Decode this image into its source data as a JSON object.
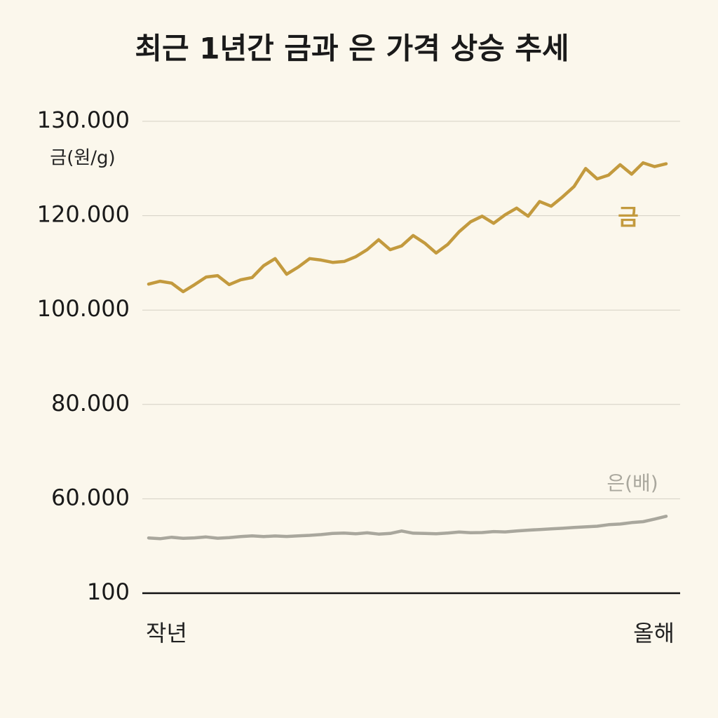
{
  "chart_data": {
    "type": "line",
    "title": "최근 1년간 금과 은 가격 상승 추세",
    "y_axis_label": "금(원/g)",
    "x_labels": [
      "작년",
      "올해"
    ],
    "ylim": [
      100,
      130000
    ],
    "yticks": [
      {
        "value": 130000,
        "label": "130.000"
      },
      {
        "value": 120000,
        "label": "120.000"
      },
      {
        "value": 100000,
        "label": "100.000"
      },
      {
        "value": 80000,
        "label": "80.000"
      },
      {
        "value": 60000,
        "label": "60.000"
      },
      100
    ],
    "grid": true,
    "series": [
      {
        "name": "금",
        "color": "#c39a3e",
        "values": [
          105500,
          106100,
          105700,
          103900,
          105400,
          107000,
          107300,
          105400,
          106400,
          106900,
          109400,
          110900,
          107600,
          109100,
          110900,
          110600,
          110100,
          110300,
          111300,
          112800,
          114900,
          112800,
          113600,
          115800,
          114200,
          112100,
          113900,
          116600,
          118700,
          119900,
          118400,
          120100,
          120800,
          119900,
          121500,
          121000,
          122000,
          123100,
          125000,
          123900,
          124300,
          125400,
          124400,
          125600,
          125200,
          125500
        ]
      },
      {
        "name": "은(배)",
        "color": "#a9a79d",
        "values": [
          35150,
          34700,
          35600,
          34900,
          35200,
          35800,
          35000,
          35400,
          36000,
          36500,
          36040,
          36400,
          36100,
          36500,
          36800,
          37300,
          38000,
          38260,
          37800,
          38400,
          37600,
          38000,
          39590,
          38200,
          38000,
          37800,
          38300,
          38900,
          38500,
          38600,
          39200,
          39000,
          39590,
          40100,
          40500,
          40920,
          41300,
          41800,
          42200,
          42600,
          43580,
          44000,
          44910,
          45500,
          47130,
          48910
        ]
      }
    ]
  }
}
